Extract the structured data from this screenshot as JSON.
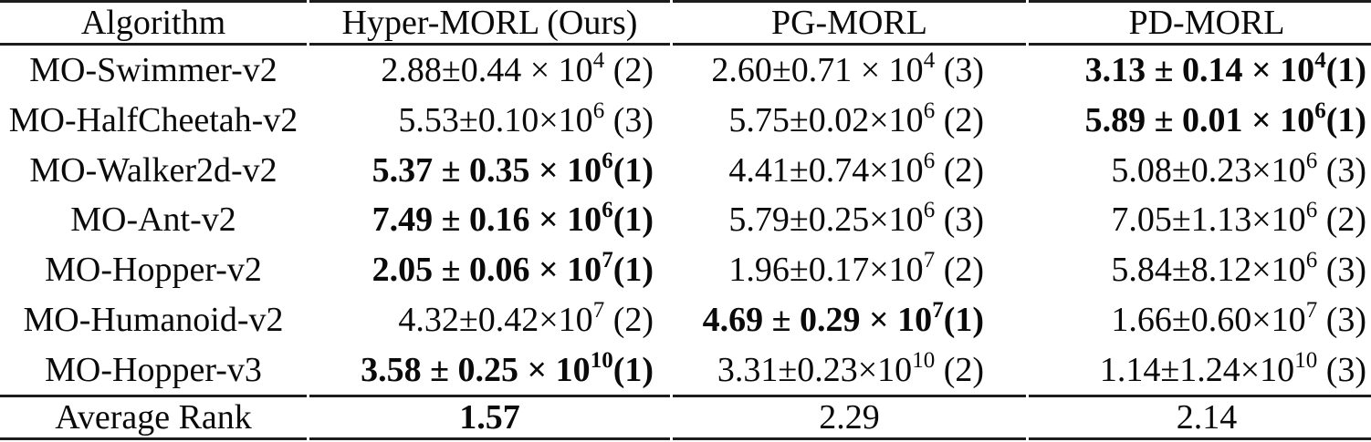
{
  "table": {
    "columns": [
      {
        "label": "Algorithm"
      },
      {
        "label": "Hyper-MORL (Ours)"
      },
      {
        "label": "PG-MORL"
      },
      {
        "label": "PD-MORL"
      }
    ],
    "rows": [
      {
        "algorithm": "MO-Swimmer-v2",
        "cells": [
          {
            "pre": "2.88±0.44 × 10",
            "sup": "4",
            "post": " (2)",
            "bold": false
          },
          {
            "pre": "2.60±0.71 × 10",
            "sup": "4",
            "post": " (3)",
            "bold": false
          },
          {
            "pre": "3.13 ± 0.14 × 10",
            "sup": "4",
            "post": "(1)",
            "bold": true
          }
        ]
      },
      {
        "algorithm": "MO-HalfCheetah-v2",
        "cells": [
          {
            "pre": "5.53±0.10×10",
            "sup": "6",
            "post": " (3)",
            "bold": false
          },
          {
            "pre": "5.75±0.02×10",
            "sup": "6",
            "post": " (2)",
            "bold": false
          },
          {
            "pre": "5.89 ± 0.01 × 10",
            "sup": "6",
            "post": "(1)",
            "bold": true
          }
        ]
      },
      {
        "algorithm": "MO-Walker2d-v2",
        "cells": [
          {
            "pre": "5.37 ± 0.35 × 10",
            "sup": "6",
            "post": "(1)",
            "bold": true
          },
          {
            "pre": "4.41±0.74×10",
            "sup": "6",
            "post": " (2)",
            "bold": false
          },
          {
            "pre": "5.08±0.23×10",
            "sup": "6",
            "post": " (3)",
            "bold": false
          }
        ]
      },
      {
        "algorithm": "MO-Ant-v2",
        "cells": [
          {
            "pre": "7.49 ± 0.16 × 10",
            "sup": "6",
            "post": "(1)",
            "bold": true
          },
          {
            "pre": "5.79±0.25×10",
            "sup": "6",
            "post": " (3)",
            "bold": false
          },
          {
            "pre": "7.05±1.13×10",
            "sup": "6",
            "post": " (2)",
            "bold": false
          }
        ]
      },
      {
        "algorithm": "MO-Hopper-v2",
        "cells": [
          {
            "pre": "2.05 ± 0.06 × 10",
            "sup": "7",
            "post": "(1)",
            "bold": true
          },
          {
            "pre": "1.96±0.17×10",
            "sup": "7",
            "post": " (2)",
            "bold": false
          },
          {
            "pre": "5.84±8.12×10",
            "sup": "6",
            "post": " (3)",
            "bold": false
          }
        ]
      },
      {
        "algorithm": "MO-Humanoid-v2",
        "cells": [
          {
            "pre": "4.32±0.42×10",
            "sup": "7",
            "post": " (2)",
            "bold": false
          },
          {
            "pre": "4.69 ± 0.29 × 10",
            "sup": "7",
            "post": "(1)",
            "bold": true
          },
          {
            "pre": "1.66±0.60×10",
            "sup": "7",
            "post": " (3)",
            "bold": false
          }
        ]
      },
      {
        "algorithm": "MO-Hopper-v3",
        "cells": [
          {
            "pre": "3.58 ± 0.25 × 10",
            "sup": "10",
            "post": "(1)",
            "bold": true
          },
          {
            "pre": "3.31±0.23×10",
            "sup": "10",
            "post": " (2)",
            "bold": false
          },
          {
            "pre": "1.14±1.24×10",
            "sup": "10",
            "post": " (3)",
            "bold": false
          }
        ]
      }
    ],
    "footer": {
      "label": "Average Rank",
      "values": [
        {
          "text": "1.57",
          "bold": true
        },
        {
          "text": "2.29",
          "bold": false
        },
        {
          "text": "2.14",
          "bold": false
        }
      ]
    }
  }
}
